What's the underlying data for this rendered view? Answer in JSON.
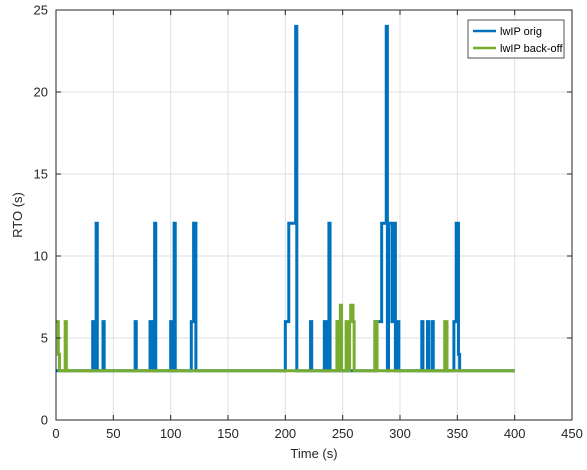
{
  "chart_data": {
    "type": "line",
    "title": "",
    "xlabel": "Time (s)",
    "ylabel": "RTO (s)",
    "xlim": [
      0,
      450
    ],
    "ylim": [
      0,
      25
    ],
    "x_ticks": [
      0,
      50,
      100,
      150,
      200,
      250,
      300,
      350,
      400,
      450
    ],
    "y_ticks": [
      0,
      5,
      10,
      15,
      20,
      25
    ],
    "x_tick_labels": [
      "0",
      "50",
      "100",
      "150",
      "200",
      "250",
      "300",
      "350",
      "400",
      "450"
    ],
    "y_tick_labels": [
      "0",
      "5",
      "10",
      "15",
      "20",
      "25"
    ],
    "grid": true,
    "legend_position": "top-right",
    "series": [
      {
        "name": "lwIP orig",
        "color": "#0072BD",
        "x": [
          0,
          32,
          32,
          33,
          33,
          35,
          35,
          36,
          36,
          37,
          37,
          41,
          41,
          42,
          42,
          43,
          43,
          69,
          69,
          70,
          70,
          82,
          82,
          84,
          84,
          86,
          86,
          87,
          87,
          88,
          88,
          100,
          100,
          102,
          102,
          103,
          103,
          104,
          104,
          118,
          118,
          120,
          120,
          122,
          122,
          123,
          123,
          200,
          200,
          203,
          203,
          207,
          207,
          209,
          209,
          210,
          210,
          211,
          211,
          222,
          222,
          223,
          223,
          234,
          234,
          236,
          236,
          238,
          238,
          239,
          239,
          240,
          240,
          246,
          246,
          248,
          248,
          279,
          279,
          281,
          281,
          284,
          284,
          288,
          288,
          289,
          289,
          290,
          290,
          293,
          293,
          295,
          295,
          296,
          296,
          297,
          297,
          299,
          299,
          300,
          300,
          319,
          319,
          320,
          320,
          324,
          324,
          325,
          325,
          328,
          328,
          329,
          329,
          347,
          347,
          349,
          349,
          351,
          351,
          352,
          352,
          353,
          353,
          400
        ],
        "y": [
          3,
          3,
          6,
          6,
          3,
          3,
          12,
          12,
          3,
          3,
          3,
          3,
          6,
          6,
          3,
          3,
          3,
          3,
          6,
          6,
          3,
          3,
          6,
          6,
          3,
          3,
          12,
          12,
          3,
          3,
          3,
          3,
          6,
          6,
          3,
          3,
          12,
          12,
          3,
          3,
          6,
          6,
          12,
          12,
          3,
          3,
          3,
          3,
          6,
          6,
          12,
          12,
          12,
          12,
          24,
          24,
          3,
          3,
          3,
          3,
          6,
          6,
          3,
          3,
          6,
          6,
          3,
          3,
          12,
          12,
          3,
          3,
          3,
          3,
          6,
          6,
          3,
          3,
          6,
          6,
          6,
          6,
          12,
          12,
          24,
          24,
          3,
          3,
          12,
          12,
          6,
          6,
          12,
          12,
          3,
          3,
          6,
          6,
          3,
          3,
          3,
          3,
          6,
          6,
          3,
          3,
          6,
          6,
          3,
          3,
          6,
          6,
          3,
          3,
          6,
          6,
          12,
          12,
          4,
          4,
          3,
          3,
          3,
          3
        ]
      },
      {
        "name": "lwIP back-off",
        "color": "#77AC30",
        "x": [
          0,
          0,
          2,
          2,
          3,
          3,
          8,
          8,
          9,
          9,
          245,
          245,
          246,
          246,
          248,
          248,
          249,
          249,
          253,
          253,
          255,
          255,
          256,
          256,
          257,
          257,
          259,
          259,
          260,
          260,
          278,
          278,
          280,
          280,
          281,
          281,
          339,
          339,
          341,
          341,
          400
        ],
        "y": [
          6,
          6,
          6,
          4,
          4,
          3,
          3,
          6,
          6,
          3,
          3,
          6,
          6,
          3,
          3,
          7,
          7,
          3,
          3,
          6,
          6,
          3,
          3,
          6,
          6,
          7,
          7,
          6,
          6,
          3,
          3,
          6,
          6,
          3,
          3,
          3,
          3,
          6,
          6,
          3,
          3
        ]
      }
    ]
  }
}
